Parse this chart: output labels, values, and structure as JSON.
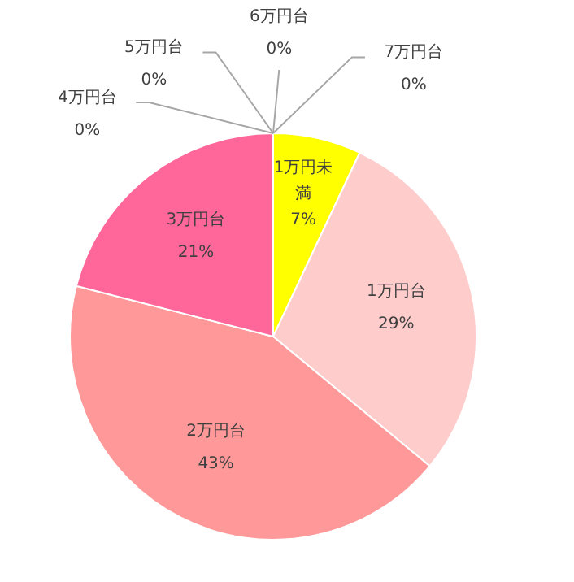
{
  "chart_data": {
    "type": "pie",
    "categories": [
      "1万円未満",
      "1万円台",
      "2万円台",
      "3万円台",
      "4万円台",
      "5万円台",
      "6万円台",
      "7万円台"
    ],
    "values": [
      7,
      29,
      43,
      21,
      0,
      0,
      0,
      0
    ],
    "colors": [
      "#ffff00",
      "#ffcccc",
      "#ff9999",
      "#ff6699",
      null,
      null,
      null,
      null
    ],
    "value_labels": [
      "7%",
      "29%",
      "43%",
      "21%",
      "0%",
      "0%",
      "0%",
      "0%"
    ]
  }
}
